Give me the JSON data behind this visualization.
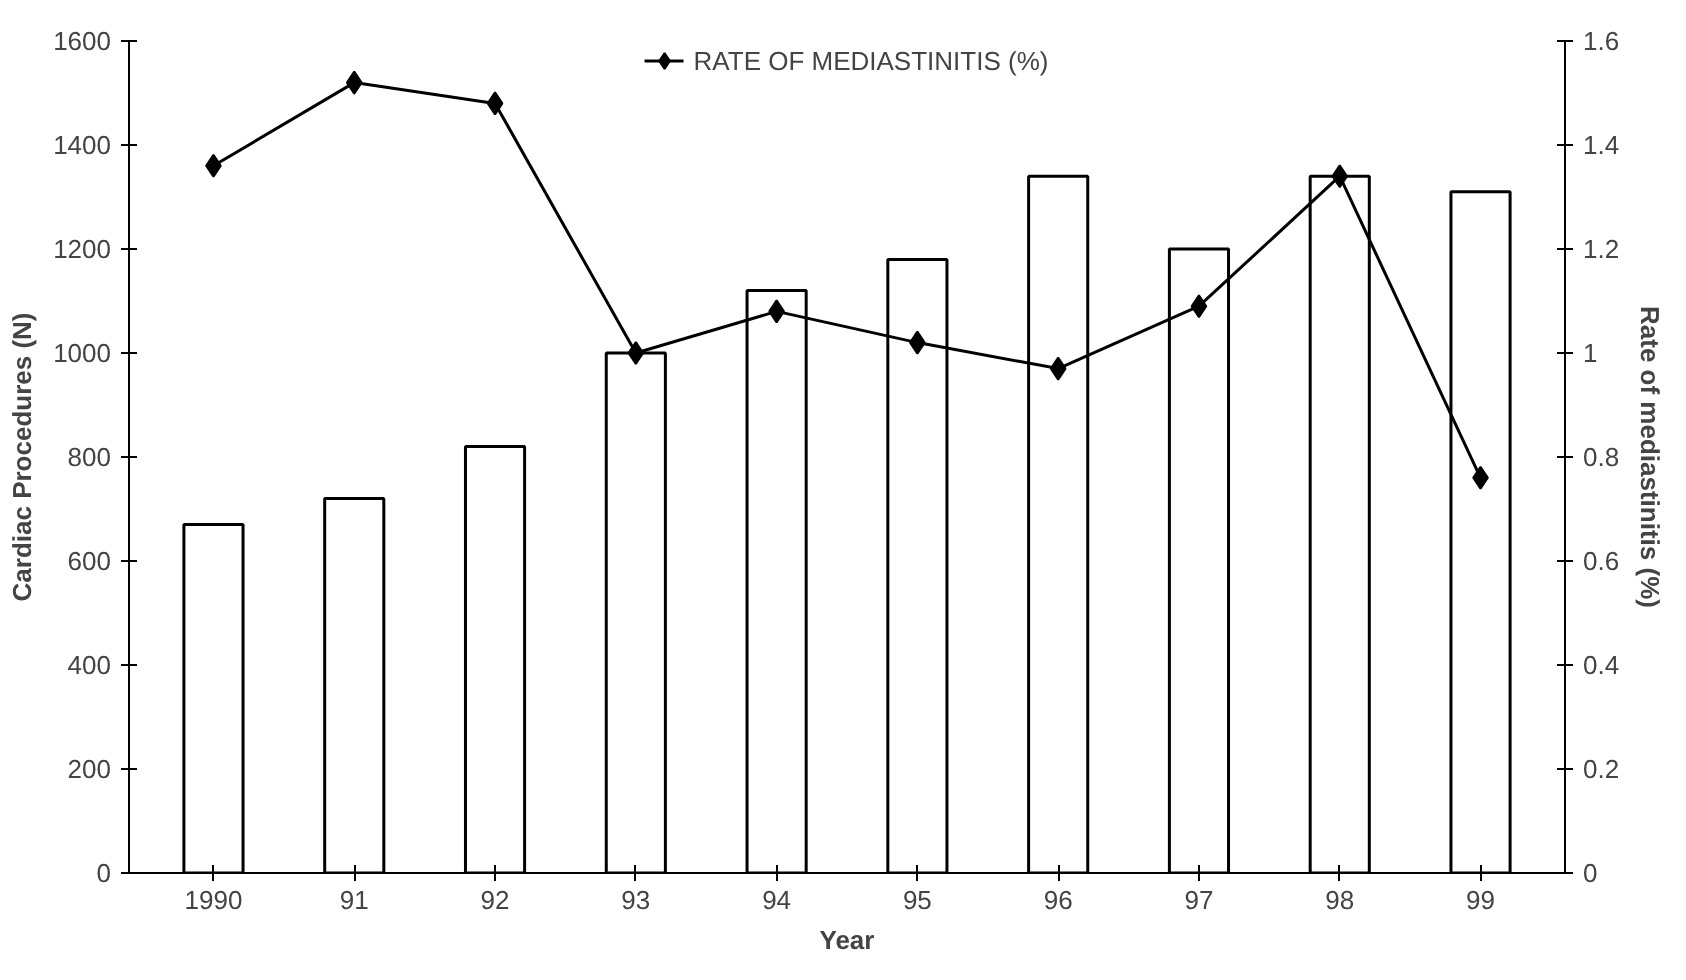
{
  "chart_data": {
    "type": "bar",
    "xlabel": "Year",
    "ylabel": "Cardiac Procedures (N)",
    "y2label": "Rate of mediastinitis (%)",
    "categories": [
      "1990",
      "91",
      "92",
      "93",
      "94",
      "95",
      "96",
      "97",
      "98",
      "99"
    ],
    "series": [
      {
        "color": "#ffffff",
        "values": [
          670,
          720,
          820,
          1000,
          1120,
          1180,
          1340,
          1200,
          1340,
          1310
        ]
      },
      {
        "type": "line",
        "name": "RATE OF MEDIASTINITIS (%)",
        "color": "#000000",
        "axis": "y2",
        "marker": "diamond",
        "line_style": "solid",
        "values": [
          1.36,
          1.52,
          1.48,
          1.0,
          1.08,
          1.02,
          0.97,
          1.09,
          1.34,
          0.76
        ]
      }
    ],
    "ylim": [
      0,
      1600
    ],
    "yticks": [
      0,
      200,
      400,
      600,
      800,
      1000,
      1200,
      1400,
      1600
    ],
    "y2lim": [
      0,
      1.6
    ],
    "y2ticks": [
      0,
      {
        "value": 0.2,
        "label": "0.2"
      },
      {
        "value": 0.4,
        "label": "0.4"
      },
      {
        "value": 0.6,
        "label": "0.6"
      },
      {
        "value": 0.8,
        "label": "0.8"
      },
      1,
      {
        "value": 1.2,
        "label": "1.2"
      },
      {
        "value": 1.4,
        "label": "1.4"
      },
      {
        "value": 1.6,
        "label": "1.6"
      }
    ],
    "grid": false,
    "legend": "top"
  }
}
